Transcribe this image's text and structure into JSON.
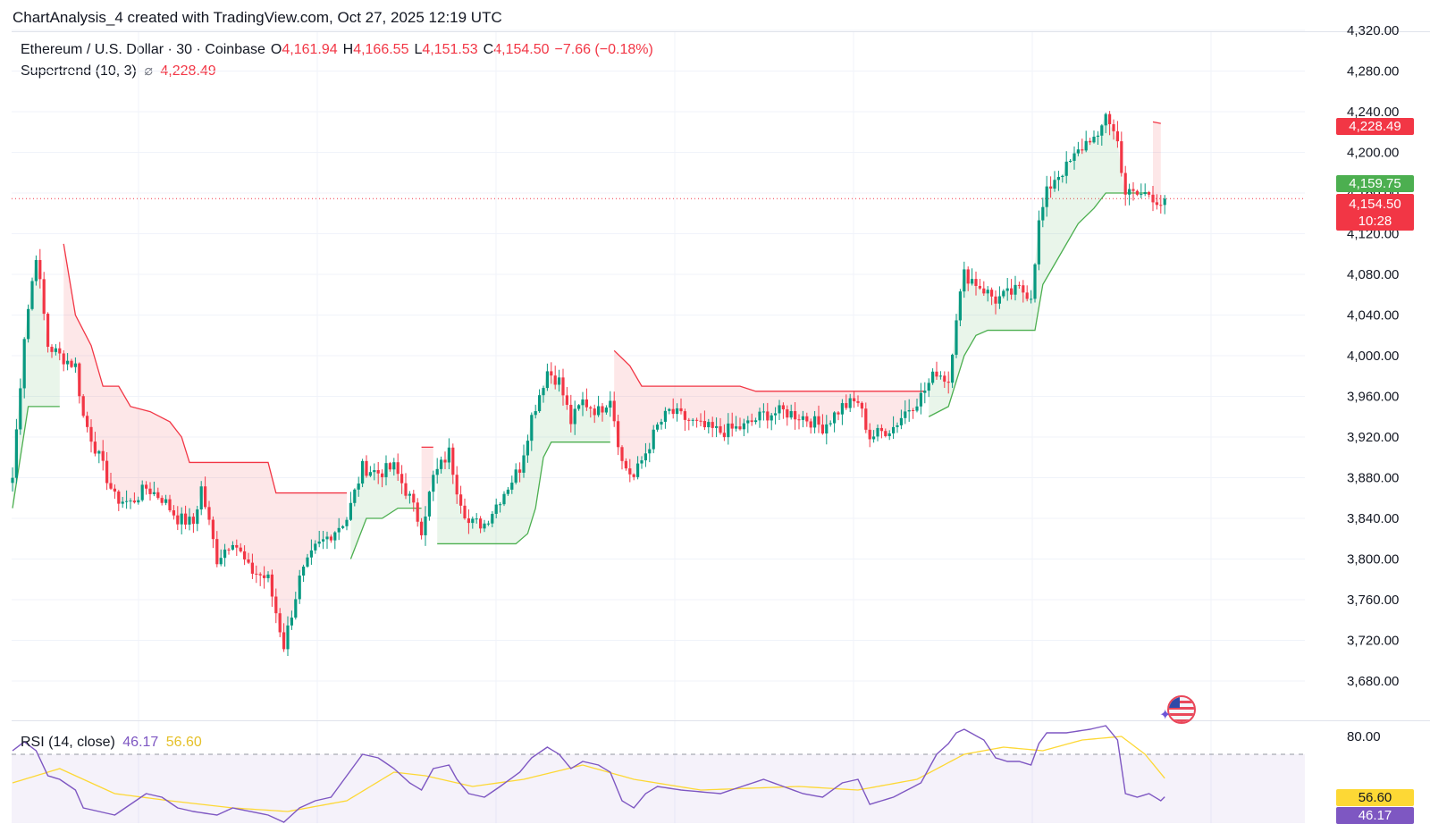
{
  "header": {
    "title": "ChartAnalysis_4 created with TradingView.com, Oct 27, 2025 12:19 UTC"
  },
  "legend": {
    "symbol": "Ethereum / U.S. Dollar · 30 · Coinbase",
    "o_label": "O",
    "o_value": "4,161.94",
    "h_label": "H",
    "h_value": "4,166.55",
    "l_label": "L",
    "l_value": "4,151.53",
    "c_label": "C",
    "c_value": "4,154.50",
    "change": "−7.66 (−0.18%)",
    "indicator": "Supertrend (10, 3)",
    "indicator_icon": "strikethrough-circle-icon",
    "indicator_value": "4,228.49"
  },
  "rsi_legend": {
    "label": "RSI (14, close)",
    "rsi_value": "46.17",
    "ma_value": "56.60"
  },
  "price_tags": {
    "supertrend": "4,228.49",
    "bid": "4,159.75",
    "last": "4,154.50",
    "countdown": "10:28"
  },
  "rsi_tags": {
    "ma": "56.60",
    "rsi": "46.17"
  },
  "colors": {
    "up": "#089981",
    "down": "#f23645",
    "supertrend_up": "#4caf50",
    "supertrend_down": "#f23645",
    "rsi": "#7e57c2",
    "rsi_ma": "#fdd835",
    "tag_green": "#4caf50",
    "tag_red": "#f23645",
    "tag_yellow": "#fdd835",
    "tag_purple": "#7e57c2"
  },
  "chart_data": [
    {
      "type": "candlestick",
      "title": "Ethereum / U.S. Dollar · 30 · Coinbase",
      "ylim": [
        3660,
        4330
      ],
      "y_ticks": [
        "4,320.00",
        "4,280.00",
        "4,240.00",
        "4,200.00",
        "4,160.00",
        "4,120.00",
        "4,080.00",
        "4,040.00",
        "4,000.00",
        "3,960.00",
        "3,920.00",
        "3,880.00",
        "3,840.00",
        "3,800.00",
        "3,760.00",
        "3,720.00",
        "3,680.00"
      ],
      "y_tick_values": [
        4320,
        4280,
        4240,
        4200,
        4160,
        4120,
        4080,
        4040,
        4000,
        3960,
        3920,
        3880,
        3840,
        3800,
        3760,
        3720,
        3680
      ],
      "close_path": [
        [
          0,
          3880
        ],
        [
          3,
          4020
        ],
        [
          6,
          4100
        ],
        [
          9,
          4010
        ],
        [
          12,
          4000
        ],
        [
          16,
          3990
        ],
        [
          18,
          3940
        ],
        [
          22,
          3900
        ],
        [
          26,
          3860
        ],
        [
          30,
          3855
        ],
        [
          34,
          3870
        ],
        [
          38,
          3860
        ],
        [
          42,
          3840
        ],
        [
          46,
          3835
        ],
        [
          48,
          3870
        ],
        [
          52,
          3800
        ],
        [
          56,
          3820
        ],
        [
          60,
          3790
        ],
        [
          65,
          3780
        ],
        [
          69,
          3715
        ],
        [
          73,
          3780
        ],
        [
          77,
          3810
        ],
        [
          81,
          3825
        ],
        [
          85,
          3840
        ],
        [
          89,
          3890
        ],
        [
          93,
          3885
        ],
        [
          97,
          3890
        ],
        [
          101,
          3860
        ],
        [
          104,
          3830
        ],
        [
          107,
          3880
        ],
        [
          111,
          3905
        ],
        [
          113,
          3870
        ],
        [
          116,
          3835
        ],
        [
          120,
          3835
        ],
        [
          124,
          3860
        ],
        [
          129,
          3890
        ],
        [
          132,
          3940
        ],
        [
          136,
          3985
        ],
        [
          139,
          3975
        ],
        [
          142,
          3935
        ],
        [
          145,
          3955
        ],
        [
          149,
          3945
        ],
        [
          152,
          3960
        ],
        [
          155,
          3895
        ],
        [
          158,
          3880
        ],
        [
          161,
          3905
        ],
        [
          164,
          3930
        ],
        [
          167,
          3945
        ],
        [
          170,
          3940
        ],
        [
          175,
          3930
        ],
        [
          180,
          3925
        ],
        [
          186,
          3930
        ],
        [
          191,
          3942
        ],
        [
          196,
          3945
        ],
        [
          201,
          3940
        ],
        [
          206,
          3930
        ],
        [
          211,
          3950
        ],
        [
          215,
          3955
        ],
        [
          218,
          3920
        ],
        [
          221,
          3925
        ],
        [
          224,
          3930
        ],
        [
          227,
          3945
        ],
        [
          231,
          3960
        ],
        [
          235,
          3985
        ],
        [
          238,
          3975
        ],
        [
          240,
          4040
        ],
        [
          242,
          4080
        ],
        [
          244,
          4075
        ],
        [
          247,
          4065
        ],
        [
          250,
          4055
        ],
        [
          253,
          4060
        ],
        [
          256,
          4065
        ],
        [
          259,
          4060
        ],
        [
          261,
          4130
        ],
        [
          263,
          4160
        ],
        [
          265,
          4175
        ],
        [
          268,
          4185
        ],
        [
          271,
          4200
        ],
        [
          274,
          4215
        ],
        [
          276,
          4210
        ],
        [
          278,
          4240
        ],
        [
          281,
          4210
        ],
        [
          283,
          4160
        ],
        [
          286,
          4158
        ],
        [
          289,
          4160
        ],
        [
          292,
          4150
        ],
        [
          293,
          4155
        ]
      ],
      "last_close": 4154.5,
      "current_line": 4154.5
    },
    {
      "type": "line",
      "series": [
        {
          "name": "Supertrend (10, 3)",
          "direction": "up",
          "points": [
            [
              0,
              3850
            ],
            [
              4,
              3950
            ],
            [
              12,
              3950
            ]
          ]
        },
        {
          "name": "Supertrend (10, 3)",
          "direction": "down",
          "points": [
            [
              13,
              4110
            ],
            [
              16,
              4040
            ],
            [
              20,
              4010
            ],
            [
              23,
              3970
            ],
            [
              27,
              3970
            ],
            [
              30,
              3950
            ],
            [
              35,
              3945
            ],
            [
              40,
              3935
            ],
            [
              43,
              3920
            ],
            [
              45,
              3895
            ],
            [
              65,
              3895
            ],
            [
              67,
              3865
            ],
            [
              85,
              3865
            ]
          ]
        },
        {
          "name": "Supertrend (10, 3)",
          "direction": "up",
          "points": [
            [
              86,
              3800
            ],
            [
              90,
              3840
            ],
            [
              94,
              3840
            ],
            [
              98,
              3850
            ],
            [
              104,
              3850
            ]
          ]
        },
        {
          "name": "Supertrend (10, 3)",
          "direction": "down",
          "points": [
            [
              104,
              3910
            ],
            [
              107,
              3910
            ]
          ]
        },
        {
          "name": "Supertrend (10, 3)",
          "direction": "up",
          "points": [
            [
              108,
              3815
            ],
            [
              128,
              3815
            ],
            [
              131,
              3825
            ],
            [
              133,
              3850
            ],
            [
              135,
              3900
            ],
            [
              137,
              3915
            ],
            [
              152,
              3915
            ]
          ]
        },
        {
          "name": "Supertrend (10, 3)",
          "direction": "down",
          "points": [
            [
              153,
              4005
            ],
            [
              157,
              3990
            ],
            [
              160,
              3970
            ],
            [
              185,
              3970
            ],
            [
              189,
              3965
            ],
            [
              232,
              3965
            ]
          ]
        },
        {
          "name": "Supertrend (10, 3)",
          "direction": "up",
          "points": [
            [
              233,
              3940
            ],
            [
              238,
              3950
            ],
            [
              242,
              4000
            ],
            [
              245,
              4020
            ],
            [
              248,
              4025
            ],
            [
              260,
              4025
            ],
            [
              262,
              4070
            ],
            [
              265,
              4090
            ],
            [
              268,
              4110
            ],
            [
              271,
              4130
            ],
            [
              275,
              4145
            ],
            [
              278,
              4160
            ],
            [
              289,
              4160
            ]
          ]
        },
        {
          "name": "Supertrend (10, 3)",
          "direction": "down",
          "points": [
            [
              290,
              4230
            ],
            [
              292,
              4228.49
            ]
          ]
        }
      ]
    },
    {
      "type": "line",
      "title": "RSI (14, close)",
      "ylim": [
        36,
        90
      ],
      "y_ticks": [
        "80.00"
      ],
      "y_tick_values": [
        80
      ],
      "bands": [
        70,
        30
      ],
      "series": [
        {
          "name": "RSI",
          "values": [
            [
              0,
              72
            ],
            [
              3,
              77
            ],
            [
              6,
              72
            ],
            [
              9,
              58
            ],
            [
              12,
              56
            ],
            [
              16,
              50
            ],
            [
              18,
              40
            ],
            [
              22,
              38
            ],
            [
              26,
              36
            ],
            [
              34,
              48
            ],
            [
              38,
              46
            ],
            [
              42,
              40
            ],
            [
              46,
              38
            ],
            [
              52,
              36
            ],
            [
              56,
              40
            ],
            [
              65,
              36
            ],
            [
              69,
              32
            ],
            [
              73,
              40
            ],
            [
              77,
              44
            ],
            [
              81,
              46
            ],
            [
              85,
              58
            ],
            [
              89,
              70
            ],
            [
              93,
              68
            ],
            [
              97,
              62
            ],
            [
              101,
              54
            ],
            [
              104,
              50
            ],
            [
              107,
              62
            ],
            [
              111,
              64
            ],
            [
              113,
              56
            ],
            [
              116,
              48
            ],
            [
              120,
              46
            ],
            [
              124,
              52
            ],
            [
              129,
              60
            ],
            [
              132,
              68
            ],
            [
              136,
              74
            ],
            [
              139,
              70
            ],
            [
              142,
              62
            ],
            [
              145,
              66
            ],
            [
              149,
              64
            ],
            [
              152,
              60
            ],
            [
              155,
              44
            ],
            [
              158,
              40
            ],
            [
              161,
              48
            ],
            [
              164,
              52
            ],
            [
              170,
              50
            ],
            [
              180,
              48
            ],
            [
              191,
              56
            ],
            [
              196,
              52
            ],
            [
              201,
              48
            ],
            [
              206,
              46
            ],
            [
              211,
              54
            ],
            [
              215,
              56
            ],
            [
              218,
              42
            ],
            [
              224,
              46
            ],
            [
              231,
              54
            ],
            [
              235,
              70
            ],
            [
              238,
              76
            ],
            [
              240,
              82
            ],
            [
              242,
              84
            ],
            [
              247,
              78
            ],
            [
              250,
              68
            ],
            [
              253,
              66
            ],
            [
              256,
              66
            ],
            [
              259,
              64
            ],
            [
              261,
              76
            ],
            [
              263,
              82
            ],
            [
              268,
              82
            ],
            [
              274,
              84
            ],
            [
              278,
              86
            ],
            [
              281,
              78
            ],
            [
              283,
              48
            ],
            [
              286,
              46
            ],
            [
              289,
              48
            ],
            [
              292,
              44
            ],
            [
              293,
              46.17
            ]
          ]
        },
        {
          "name": "RSI MA",
          "values": [
            [
              0,
              54
            ],
            [
              6,
              58
            ],
            [
              12,
              62
            ],
            [
              18,
              56
            ],
            [
              26,
              48
            ],
            [
              40,
              44
            ],
            [
              56,
              40
            ],
            [
              70,
              38
            ],
            [
              85,
              44
            ],
            [
              97,
              60
            ],
            [
              105,
              58
            ],
            [
              117,
              52
            ],
            [
              130,
              56
            ],
            [
              145,
              64
            ],
            [
              158,
              56
            ],
            [
              175,
              50
            ],
            [
              200,
              52
            ],
            [
              215,
              50
            ],
            [
              230,
              56
            ],
            [
              242,
              70
            ],
            [
              252,
              74
            ],
            [
              262,
              72
            ],
            [
              272,
              78
            ],
            [
              282,
              80
            ],
            [
              288,
              70
            ],
            [
              293,
              56.6
            ]
          ]
        }
      ]
    }
  ]
}
